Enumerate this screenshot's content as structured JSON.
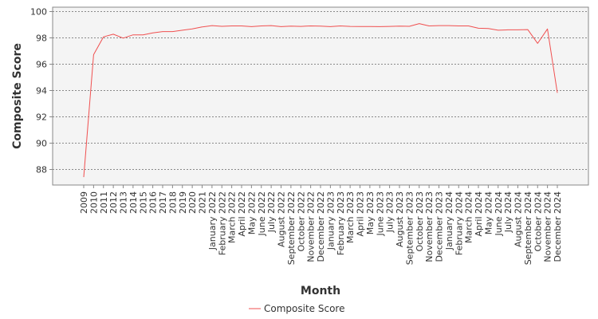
{
  "chart_data": {
    "type": "line",
    "xlabel": "Month",
    "ylabel": "Composite Score",
    "ylim": [
      86.8,
      100.3
    ],
    "yticks": [
      88,
      90,
      92,
      94,
      96,
      98,
      100
    ],
    "grid": true,
    "legend_position": "bottom-center",
    "categories": [
      "2009",
      "2010",
      "2011",
      "2012",
      "2013",
      "2014",
      "2015",
      "2016",
      "2017",
      "2018",
      "2019",
      "2020",
      "2021",
      "January 2022",
      "February 2022",
      "March 2022",
      "April 2022",
      "May 2022",
      "June 2022",
      "July 2022",
      "August 2022",
      "September 2022",
      "October 2022",
      "November 2022",
      "December 2022",
      "January 2023",
      "February 2023",
      "March 2023",
      "April 2023",
      "May 2023",
      "June 2023",
      "July 2023",
      "August 2023",
      "September 2023",
      "October 2023",
      "November 2023",
      "December 2023",
      "January 2024",
      "February 2024",
      "March 2024",
      "April 2024",
      "May 2024",
      "June 2024",
      "July 2024",
      "August 2024",
      "September 2024",
      "October 2024",
      "November 2024",
      "December 2024"
    ],
    "series": [
      {
        "name": "Composite Score",
        "color": "#f05050",
        "values": [
          87.4,
          96.7,
          98.05,
          98.25,
          97.95,
          98.2,
          98.2,
          98.35,
          98.45,
          98.45,
          98.55,
          98.65,
          98.8,
          98.9,
          98.85,
          98.88,
          98.88,
          98.82,
          98.88,
          98.9,
          98.82,
          98.86,
          98.84,
          98.88,
          98.86,
          98.82,
          98.88,
          98.84,
          98.83,
          98.83,
          98.82,
          98.84,
          98.86,
          98.85,
          99.05,
          98.88,
          98.9,
          98.9,
          98.88,
          98.88,
          98.7,
          98.68,
          98.55,
          98.58,
          98.58,
          98.6,
          97.55,
          98.65,
          93.8
        ]
      }
    ]
  }
}
